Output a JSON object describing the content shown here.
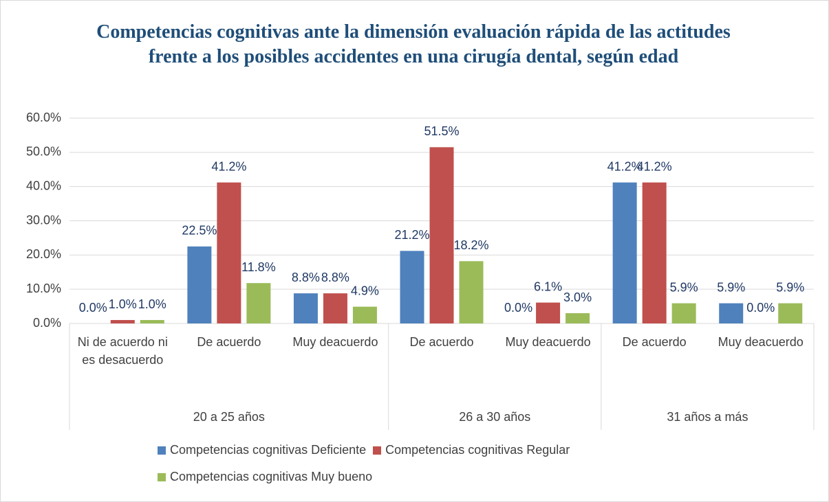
{
  "chart_data": {
    "type": "bar",
    "title": "Competencias cognitivas ante la dimensión evaluación rápida de las actitudes frente a los posibles accidentes en una cirugía dental, según edad",
    "groups": [
      {
        "name": "20 a 25 años",
        "categories": [
          "Ni de acuerdo ni es desacuerdo",
          "De acuerdo",
          "Muy deacuerdo"
        ]
      },
      {
        "name": "26 a 30 años",
        "categories": [
          "De acuerdo",
          "Muy deacuerdo"
        ]
      },
      {
        "name": "31 años a más",
        "categories": [
          "De acuerdo",
          "Muy deacuerdo"
        ]
      }
    ],
    "series": [
      {
        "name": "Competencias cognitivas Deficiente",
        "color": "#4f81bd",
        "values": [
          0,
          22.5,
          8.8,
          21.2,
          0,
          41.2,
          5.9
        ],
        "value_labels": [
          "0.0%",
          "22.5%",
          "8.8%",
          "21.2%",
          "0.0%",
          "41.2%",
          "5.9%"
        ]
      },
      {
        "name": "Competencias cognitivas Regular",
        "color": "#c0504d",
        "values": [
          1.0,
          41.2,
          8.8,
          51.5,
          6.1,
          41.2,
          0
        ],
        "value_labels": [
          "1.0%",
          "41.2%",
          "8.8%",
          "51.5%",
          "6.1%",
          "41.2%",
          "0.0%"
        ]
      },
      {
        "name": "Competencias cognitivas Muy bueno",
        "color": "#9bbb59",
        "values": [
          1.0,
          11.8,
          4.9,
          18.2,
          3.0,
          5.9,
          5.9
        ],
        "value_labels": [
          "1.0%",
          "11.8%",
          "4.9%",
          "18.2%",
          "3.0%",
          "5.9%",
          "5.9%"
        ]
      }
    ],
    "ylim": [
      0,
      60
    ],
    "yticks": [
      {
        "value": 0,
        "label": "0.0%"
      },
      {
        "value": 10,
        "label": "10.0%"
      },
      {
        "value": 20,
        "label": "20.0%"
      },
      {
        "value": 30,
        "label": "30.0%"
      },
      {
        "value": 40,
        "label": "40.0%"
      },
      {
        "value": 50,
        "label": "50.0%"
      },
      {
        "value": 60,
        "label": "60.0%"
      }
    ],
    "grid": true,
    "legend": "bottom"
  }
}
